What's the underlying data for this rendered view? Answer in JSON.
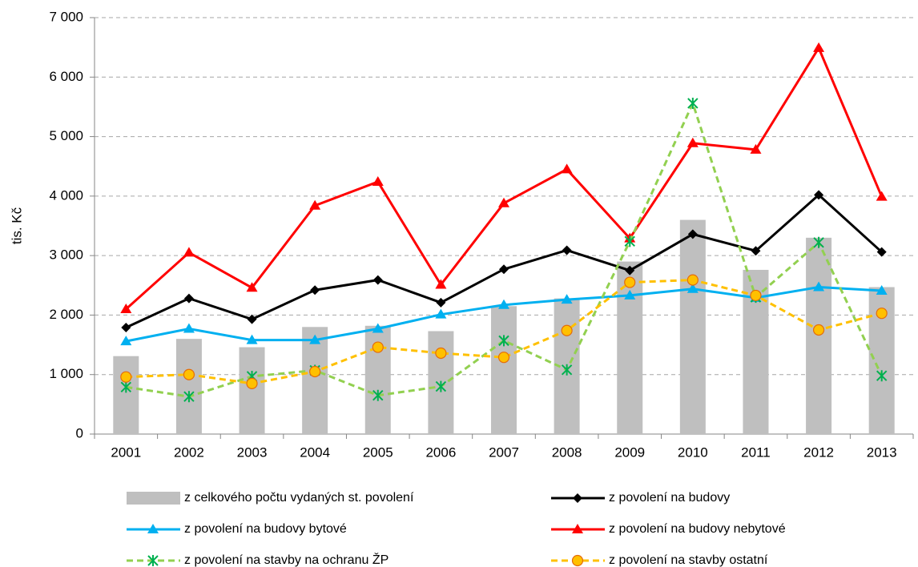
{
  "chart_data": {
    "type": "combo",
    "y_label": "tis. Kč",
    "categories": [
      "2001",
      "2002",
      "2003",
      "2004",
      "2005",
      "2006",
      "2007",
      "2008",
      "2009",
      "2010",
      "2011",
      "2012",
      "2013"
    ],
    "ylim": [
      0,
      7000
    ],
    "yticks": [
      0,
      {
        "value": 1000,
        "label": "1 000"
      },
      {
        "value": 2000,
        "label": "2 000"
      },
      {
        "value": 3000,
        "label": "3 000"
      },
      {
        "value": 4000,
        "label": "4 000"
      },
      {
        "value": 5000,
        "label": "5 000"
      },
      {
        "value": 6000,
        "label": "6 000"
      },
      {
        "value": 7000,
        "label": "7 000"
      }
    ],
    "grid": true,
    "series": [
      {
        "name": "z celkového počtu vydaných st. povolení",
        "type": "bar",
        "color": "#bfbfbf",
        "values": [
          1310,
          1600,
          1460,
          1800,
          1820,
          1730,
          2150,
          2280,
          2900,
          3600,
          2760,
          3300,
          2470
        ]
      },
      {
        "name": "z povolení na budovy",
        "type": "line",
        "color": "#000000",
        "marker": "diamond",
        "dashed": false,
        "values": [
          1790,
          2280,
          1930,
          2420,
          2590,
          2210,
          2770,
          3090,
          2750,
          3360,
          3080,
          4020,
          3060
        ]
      },
      {
        "name": "z povolení na budovy bytové",
        "type": "line",
        "color": "#00b0f0",
        "marker": "triangle",
        "dashed": false,
        "values": [
          1560,
          1770,
          1580,
          1580,
          1770,
          2010,
          2170,
          2260,
          2330,
          2440,
          2290,
          2470,
          2410
        ]
      },
      {
        "name": "z povolení na budovy nebytové",
        "type": "line",
        "color": "#ff0000",
        "marker": "triangle",
        "dashed": false,
        "values": [
          2100,
          3050,
          2460,
          3840,
          4240,
          2510,
          3880,
          4450,
          3290,
          4890,
          4780,
          6490,
          3990
        ]
      },
      {
        "name": "z povolení na stavby na ochranu ŽP",
        "type": "line",
        "color": "#92d050",
        "marker": "star",
        "dashed": true,
        "values": [
          790,
          630,
          970,
          1070,
          650,
          800,
          1570,
          1080,
          3240,
          5560,
          2300,
          3220,
          980
        ]
      },
      {
        "name": "z povolení na stavby ostatní",
        "type": "line",
        "color": "#ffc000",
        "marker": "circle",
        "dashed": true,
        "values": [
          960,
          1000,
          850,
          1050,
          1460,
          1360,
          1290,
          1740,
          2550,
          2590,
          2330,
          1750,
          2030
        ]
      }
    ]
  }
}
